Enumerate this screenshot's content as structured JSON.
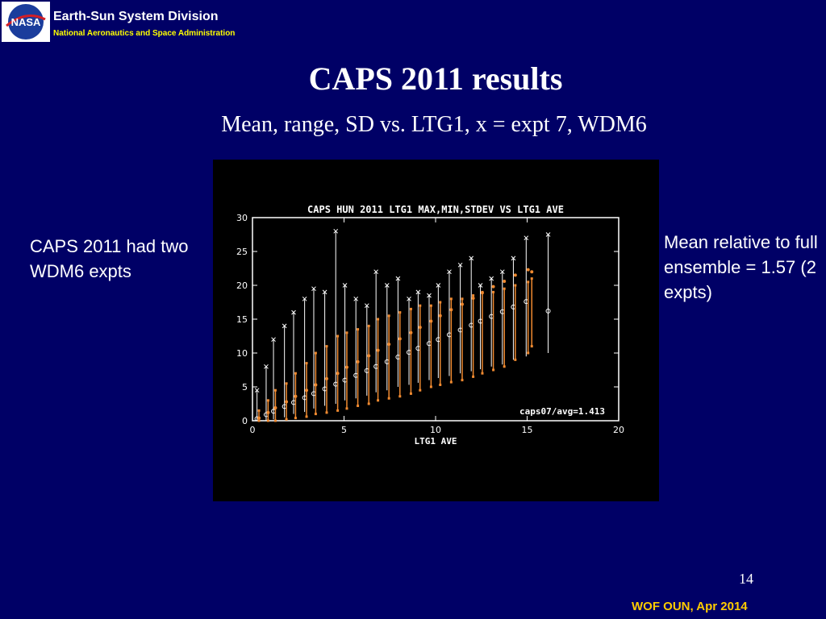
{
  "header": {
    "division": "Earth-Sun System Division",
    "agency": "National Aeronautics and Space Administration",
    "logo_text": "NASA"
  },
  "slide": {
    "title": "CAPS 2011 results",
    "subtitle": "Mean, range, SD vs. LTG1, x = expt 7, WDM6",
    "left_note": "CAPS 2011 had two WDM6 expts",
    "right_note": "Mean relative to full ensemble = 1.57 (2 expts)",
    "page_number": "14",
    "footer": "WOF OUN, Apr 2014"
  },
  "colors": {
    "background": "#000066",
    "header_text": "#ffffff",
    "agency_text": "#ffff00",
    "footer_text": "#ffcc00",
    "chart_background": "#000000",
    "ensemble_color": "#ffffff",
    "expt_color": "#f08a30"
  },
  "chart_data": {
    "type": "scatter",
    "title": "CAPS HUN 2011 LTG1 MAX,MIN,STDEV VS LTG1 AVE",
    "xlabel": "LTG1 AVE",
    "ylabel": "",
    "xlim": [
      0,
      20
    ],
    "ylim": [
      0,
      30
    ],
    "x_ticks": [
      "0",
      "5",
      "10",
      "15",
      "20"
    ],
    "y_ticks": [
      "0",
      "5",
      "10",
      "15",
      "20",
      "25",
      "30"
    ],
    "annotation": "caps07/avg=1.413",
    "grid": false,
    "series": [
      {
        "name": "",
        "kind": "ensemble range (white)",
        "x": [
          0.3,
          0.8,
          1.2,
          1.8,
          2.3,
          2.9,
          3.4,
          4.0,
          4.6,
          5.1,
          5.7,
          6.3,
          6.8,
          7.4,
          8.0,
          8.6,
          9.1,
          9.7,
          10.2,
          10.8,
          11.4,
          12.0,
          12.5,
          13.1,
          13.7,
          14.3,
          15.0,
          16.2
        ],
        "y_min": [
          0.0,
          0.0,
          0.2,
          0.5,
          1.0,
          1.3,
          1.8,
          2.2,
          2.5,
          3.0,
          3.3,
          3.7,
          4.2,
          4.5,
          5.0,
          5.3,
          5.6,
          6.0,
          6.3,
          6.6,
          7.0,
          7.3,
          7.6,
          8.0,
          8.3,
          9.0,
          9.5,
          10.0
        ],
        "y_max": [
          4.5,
          8.0,
          12.0,
          14.0,
          16.0,
          18.0,
          19.5,
          19.0,
          28.0,
          20.0,
          18.0,
          17.0,
          22.0,
          20.0,
          21.0,
          18.0,
          19.0,
          18.5,
          20.0,
          22.0,
          23.0,
          24.0,
          20.0,
          21.0,
          22.0,
          24.0,
          27.0,
          27.5
        ],
        "y_mean": [
          0.3,
          0.9,
          1.4,
          2.1,
          2.7,
          3.4,
          4.0,
          4.7,
          5.4,
          6.0,
          6.7,
          7.4,
          8.0,
          8.7,
          9.4,
          10.1,
          10.7,
          11.4,
          12.0,
          12.7,
          13.4,
          14.1,
          14.7,
          15.4,
          16.1,
          16.8,
          17.6,
          16.2
        ]
      },
      {
        "name": "",
        "kind": "expt 7 (orange)",
        "x": [
          0.3,
          0.8,
          1.2,
          1.8,
          2.3,
          2.9,
          3.4,
          4.0,
          4.6,
          5.1,
          5.7,
          6.3,
          6.8,
          7.4,
          8.0,
          8.6,
          9.1,
          9.7,
          10.2,
          10.8,
          11.4,
          12.0,
          12.5,
          13.1,
          13.7,
          14.3,
          15.0,
          15.2
        ],
        "y_min": [
          0.0,
          0.0,
          0.0,
          0.2,
          0.4,
          0.6,
          1.0,
          1.2,
          1.5,
          1.8,
          2.2,
          2.5,
          3.0,
          3.3,
          3.6,
          4.0,
          4.5,
          5.0,
          5.3,
          5.7,
          6.0,
          6.5,
          7.0,
          7.5,
          8.0,
          9.0,
          10.0,
          11.0
        ],
        "y_max": [
          1.5,
          3.0,
          4.5,
          5.5,
          7.0,
          8.5,
          10.0,
          11.0,
          12.5,
          13.0,
          13.5,
          14.0,
          15.0,
          15.5,
          16.0,
          16.5,
          17.0,
          17.0,
          17.5,
          18.0,
          18.0,
          18.5,
          19.0,
          19.0,
          19.5,
          20.0,
          20.5,
          21.0
        ],
        "y_mean": [
          0.4,
          1.2,
          1.9,
          2.8,
          3.6,
          4.5,
          5.3,
          6.2,
          7.0,
          7.9,
          8.7,
          9.6,
          10.4,
          11.3,
          12.1,
          13.0,
          13.8,
          14.7,
          15.5,
          16.4,
          17.2,
          18.1,
          18.9,
          19.8,
          20.6,
          21.5,
          22.3,
          22.0
        ]
      }
    ]
  }
}
